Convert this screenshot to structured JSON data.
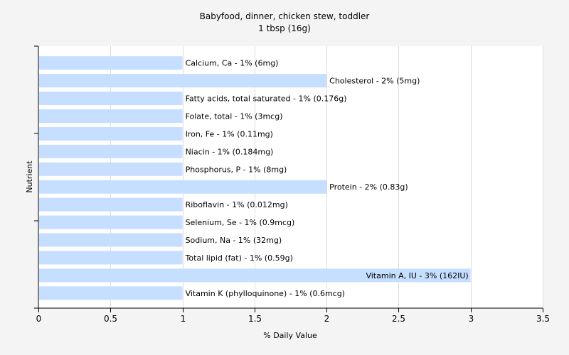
{
  "chart_data": {
    "type": "bar",
    "orientation": "horizontal",
    "title": "Babyfood, dinner, chicken stew, toddler",
    "subtitle": "1 tbsp (16g)",
    "xlabel": "% Daily Value",
    "ylabel": "Nutrient",
    "xlim": [
      0,
      3.5
    ],
    "xticks": [
      "0",
      "0.5",
      "1",
      "1.5",
      "2",
      "2.5",
      "3",
      "3.5"
    ],
    "grid": true,
    "bar_color": "#c6deff",
    "categories": [
      "Calcium, Ca",
      "Cholesterol",
      "Fatty acids, total saturated",
      "Folate, total",
      "Iron, Fe",
      "Niacin",
      "Phosphorus, P",
      "Protein",
      "Riboflavin",
      "Selenium, Se",
      "Sodium, Na",
      "Total lipid (fat)",
      "Vitamin A, IU",
      "Vitamin K (phylloquinone)"
    ],
    "values": [
      1,
      2,
      1,
      1,
      1,
      1,
      1,
      2,
      1,
      1,
      1,
      1,
      3,
      1
    ],
    "labels": [
      "Calcium, Ca - 1% (6mg)",
      "Cholesterol - 2% (5mg)",
      "Fatty acids, total saturated - 1% (0.176g)",
      "Folate, total - 1% (3mcg)",
      "Iron, Fe - 1% (0.11mg)",
      "Niacin - 1% (0.184mg)",
      "Phosphorus, P - 1% (8mg)",
      "Protein - 2% (0.83g)",
      "Riboflavin - 1% (0.012mg)",
      "Selenium, Se - 1% (0.9mcg)",
      "Sodium, Na - 1% (32mg)",
      "Total lipid (fat) - 1% (0.59g)",
      "Vitamin A, IU - 3% (162IU)",
      "Vitamin K (phylloquinone) - 1% (0.6mcg)"
    ]
  }
}
